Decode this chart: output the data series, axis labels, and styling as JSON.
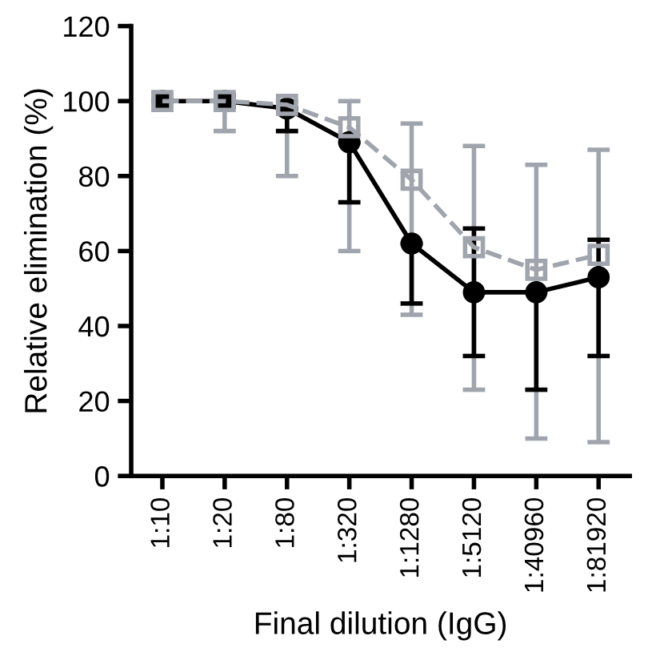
{
  "chart_data": {
    "type": "line",
    "xlabel": "Final dilution (IgG)",
    "ylabel": "Relative elimination (%)",
    "categories": [
      "1:10",
      "1:20",
      "1:80",
      "1:320",
      "1:1280",
      "1:5120",
      "1:40960",
      "1:81920"
    ],
    "ylim": [
      0,
      120
    ],
    "yticks": [
      0,
      20,
      40,
      60,
      80,
      100,
      120
    ],
    "grid": false,
    "legend": false,
    "series": [
      {
        "color": "#a0a4ac",
        "marker": "square",
        "line_style": "dashed",
        "values": [
          100,
          100,
          99,
          93,
          79,
          61,
          55,
          59
        ],
        "errors": [
          null,
          [
            92,
            100
          ],
          [
            80,
            100
          ],
          [
            60,
            100
          ],
          [
            43,
            94
          ],
          [
            23,
            88
          ],
          [
            10,
            83
          ],
          [
            9,
            87
          ]
        ]
      },
      {
        "color": "#000000",
        "marker": "circle",
        "line_style": "solid",
        "values": [
          100,
          100,
          98,
          89,
          62,
          49,
          49,
          53
        ],
        "errors": [
          null,
          [
            98.5,
            101.5
          ],
          [
            92,
            98
          ],
          [
            73,
            89
          ],
          [
            46,
            62
          ],
          [
            32,
            66
          ],
          [
            23,
            49
          ],
          [
            32,
            63
          ]
        ]
      }
    ]
  }
}
